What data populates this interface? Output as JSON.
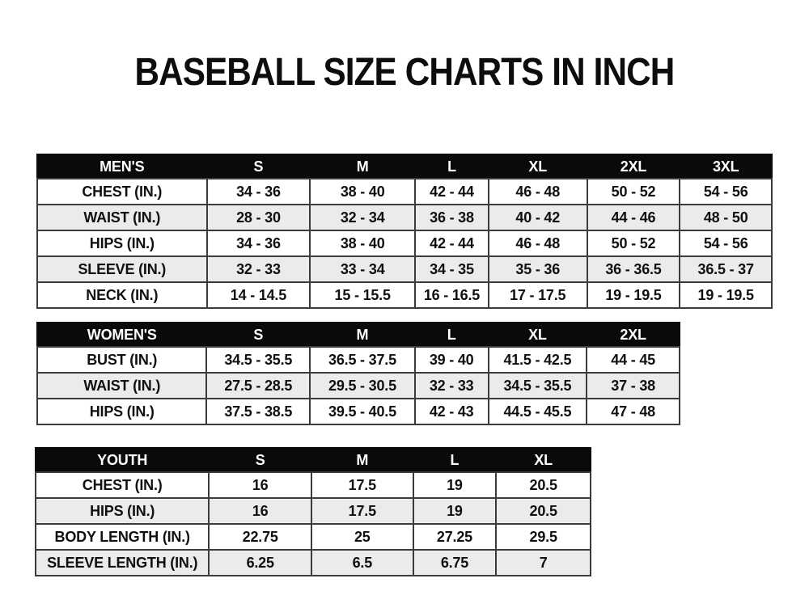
{
  "page": {
    "title": "BASEBALL SIZE CHARTS IN INCH"
  },
  "colors": {
    "page_bg": "#ffffff",
    "header_bg": "#0a0a0a",
    "header_text": "#ffffff",
    "row_bg": "#ffffff",
    "row_alt_bg": "#ebebeb",
    "border": "#3b3b3b",
    "text": "#101010"
  },
  "chart_data": [
    {
      "type": "table",
      "name": "mens",
      "columns": [
        "MEN'S",
        "S",
        "M",
        "L",
        "XL",
        "2XL",
        "3XL"
      ],
      "rows": [
        [
          "CHEST (IN.)",
          "34 - 36",
          "38 - 40",
          "42 - 44",
          "46 - 48",
          "50 - 52",
          "54 - 56"
        ],
        [
          "WAIST (IN.)",
          "28 - 30",
          "32 - 34",
          "36 - 38",
          "40 - 42",
          "44 - 46",
          "48 - 50"
        ],
        [
          "HIPS (IN.)",
          "34 - 36",
          "38 - 40",
          "42 - 44",
          "46 - 48",
          "50 - 52",
          "54 - 56"
        ],
        [
          "SLEEVE (IN.)",
          "32 - 33",
          "33 - 34",
          "34 - 35",
          "35 - 36",
          "36 - 36.5",
          "36.5 - 37"
        ],
        [
          "NECK (IN.)",
          "14 - 14.5",
          "15 - 15.5",
          "16 - 16.5",
          "17 - 17.5",
          "19 - 19.5",
          "19 - 19.5"
        ]
      ]
    },
    {
      "type": "table",
      "name": "womens",
      "columns": [
        "WOMEN'S",
        "S",
        "M",
        "L",
        "XL",
        "2XL"
      ],
      "rows": [
        [
          "BUST (IN.)",
          "34.5 - 35.5",
          "36.5 - 37.5",
          "39 - 40",
          "41.5 - 42.5",
          "44 - 45"
        ],
        [
          "WAIST (IN.)",
          "27.5 - 28.5",
          "29.5 - 30.5",
          "32 - 33",
          "34.5 - 35.5",
          "37 - 38"
        ],
        [
          "HIPS (IN.)",
          "37.5 - 38.5",
          "39.5 - 40.5",
          "42 - 43",
          "44.5 - 45.5",
          "47 - 48"
        ]
      ]
    },
    {
      "type": "table",
      "name": "youth",
      "columns": [
        "YOUTH",
        "S",
        "M",
        "L",
        "XL"
      ],
      "rows": [
        [
          "CHEST (IN.)",
          "16",
          "17.5",
          "19",
          "20.5"
        ],
        [
          "HIPS (IN.)",
          "16",
          "17.5",
          "19",
          "20.5"
        ],
        [
          "BODY LENGTH (IN.)",
          "22.75",
          "25",
          "27.25",
          "29.5"
        ],
        [
          "SLEEVE LENGTH (IN.)",
          "6.25",
          "6.5",
          "6.75",
          "7"
        ]
      ]
    }
  ]
}
